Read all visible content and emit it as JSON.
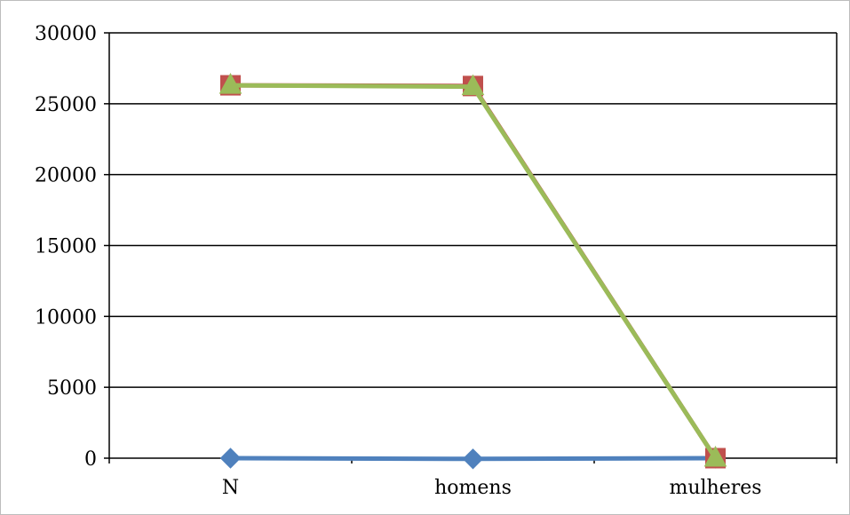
{
  "chart_data": {
    "type": "line",
    "title": "",
    "xlabel": "",
    "ylabel": "",
    "categories": [
      "N",
      "homens",
      "mulheres"
    ],
    "ylim": [
      0,
      30000
    ],
    "yticks": [
      "0",
      "5000",
      "10000",
      "15000",
      "20000",
      "25000",
      "30000"
    ],
    "grid": true,
    "legend": "none",
    "series": [
      {
        "values": [
          0,
          -50,
          0
        ],
        "color": "#4f81bd",
        "marker": "diamond"
      },
      {
        "values": [
          26300,
          26250,
          0
        ],
        "color": "#c0504d",
        "marker": "square"
      },
      {
        "values": [
          26300,
          26200,
          0
        ],
        "color": "#9bbb59",
        "marker": "triangle"
      }
    ]
  }
}
